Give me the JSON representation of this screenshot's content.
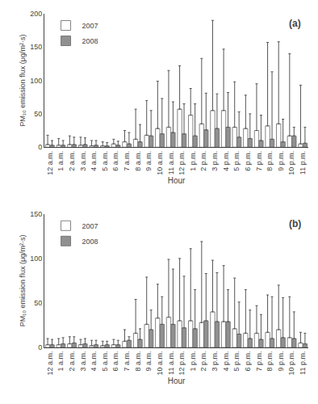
{
  "chart_data": [
    {
      "type": "bar",
      "categories": [
        "12 a.m.",
        "1 a.m.",
        "2 a.m.",
        "3 a.m.",
        "4 a.m.",
        "5 a.m.",
        "6 a.m.",
        "7 a.m.",
        "8 a.m.",
        "9 a.m.",
        "10 a.m.",
        "11 a.m.",
        "12 p.m.",
        "1 p.m.",
        "2 p.m.",
        "3 p.m.",
        "4 p.m.",
        "5 p.m.",
        "6 p.m.",
        "7 p.m.",
        "8 p.m.",
        "9 p.m.",
        "10 p.m.",
        "11 p.m."
      ],
      "series": [
        {
          "name": "2007",
          "color": "#ffffff",
          "values": [
            4,
            3,
            4,
            3,
            2,
            2,
            5,
            8,
            12,
            18,
            28,
            30,
            57,
            48,
            35,
            55,
            55,
            30,
            28,
            25,
            32,
            35,
            17,
            5
          ],
          "error_high": [
            18,
            13,
            17,
            15,
            10,
            8,
            12,
            25,
            57,
            70,
            99,
            115,
            122,
            88,
            133,
            190,
            147,
            98,
            78,
            95,
            157,
            158,
            140,
            93
          ]
        },
        {
          "name": "2008",
          "color": "#909090",
          "values": [
            3,
            3,
            4,
            4,
            3,
            2,
            3,
            5,
            8,
            17,
            20,
            22,
            20,
            17,
            26,
            28,
            30,
            15,
            13,
            10,
            12,
            8,
            17,
            6
          ],
          "error_high": [
            10,
            10,
            15,
            14,
            10,
            7,
            9,
            22,
            34,
            55,
            73,
            68,
            65,
            65,
            81,
            80,
            82,
            53,
            50,
            48,
            113,
            42,
            30,
            30
          ]
        }
      ],
      "xlabel": "Hour",
      "ylabel": "PM₁₀ emission flux (μg/m²·s)",
      "annotations": [
        "(a)"
      ],
      "ylim": [
        0,
        200
      ],
      "yticks": [
        0,
        50,
        100,
        150,
        200
      ],
      "grid": false,
      "legend": "upper left"
    },
    {
      "type": "bar",
      "categories": [
        "12 a.m.",
        "1 a.m.",
        "2 a.m.",
        "3 a.m.",
        "4 a.m.",
        "5 a.m.",
        "6 a.m.",
        "7 a.m.",
        "8 a.m.",
        "9 a.m.",
        "10 a.m.",
        "11 a.m.",
        "12 p.m.",
        "1 p.m.",
        "2 p.m.",
        "3 p.m.",
        "4 p.m.",
        "5 p.m.",
        "6 p.m.",
        "7 p.m.",
        "8 p.m.",
        "9 p.m.",
        "10 p.m.",
        "11 p.m."
      ],
      "series": [
        {
          "name": "2007",
          "color": "#ffffff",
          "values": [
            3,
            3,
            4,
            3,
            2,
            2,
            3,
            7,
            16,
            26,
            33,
            34,
            30,
            30,
            28,
            40,
            29,
            21,
            16,
            16,
            17,
            20,
            11,
            5
          ],
          "error_high": [
            10,
            10,
            12,
            9,
            8,
            7,
            9,
            20,
            54,
            79,
            71,
            99,
            100,
            111,
            119,
            98,
            92,
            78,
            65,
            47,
            59,
            70,
            57,
            17
          ]
        },
        {
          "name": "2008",
          "color": "#909090",
          "values": [
            3,
            4,
            5,
            4,
            3,
            3,
            3,
            8,
            9,
            20,
            26,
            26,
            22,
            21,
            30,
            29,
            29,
            15,
            10,
            9,
            10,
            11,
            10,
            4
          ],
          "error_high": [
            9,
            11,
            12,
            10,
            8,
            7,
            8,
            12,
            21,
            42,
            57,
            88,
            80,
            65,
            83,
            84,
            65,
            51,
            42,
            37,
            57,
            56,
            40,
            16
          ]
        }
      ],
      "xlabel": "Hour",
      "ylabel": "PM₁₀ emission flux (μg/m²·s)",
      "annotations": [
        "(b)"
      ],
      "ylim": [
        0,
        150
      ],
      "yticks": [
        0,
        50,
        100,
        150
      ],
      "grid": false,
      "legend": "upper left"
    }
  ]
}
